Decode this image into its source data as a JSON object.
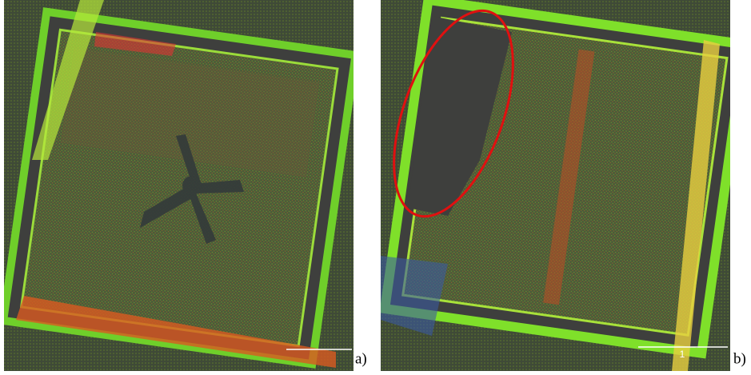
{
  "panels": [
    {
      "label": "a)"
    },
    {
      "label": "b)",
      "scale_label": "1"
    }
  ]
}
